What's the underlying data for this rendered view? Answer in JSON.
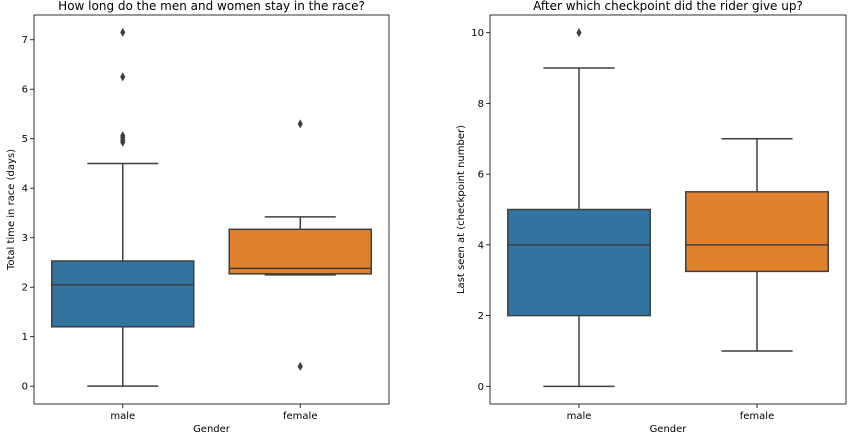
{
  "chart_data": [
    {
      "type": "box",
      "title": "How long do the men and women stay in the race?",
      "xlabel": "Gender",
      "ylabel": "Total time in race (days)",
      "categories": [
        "male",
        "female"
      ],
      "ylim": [
        -0.36,
        7.5
      ],
      "yticks": [
        0,
        1,
        2,
        3,
        4,
        5,
        6,
        7
      ],
      "grid": false,
      "boxes": [
        {
          "category": "male",
          "color": "#3274a1",
          "whisker_low": 0.0,
          "q1": 1.2,
          "median": 2.05,
          "q3": 2.53,
          "whisker_high": 4.5,
          "outliers": [
            4.93,
            4.97,
            5.02,
            5.06,
            6.25,
            7.15
          ]
        },
        {
          "category": "female",
          "color": "#e1812c",
          "whisker_low": 2.25,
          "q1": 2.27,
          "median": 2.38,
          "q3": 3.17,
          "whisker_high": 3.42,
          "outliers": [
            0.4,
            5.3
          ]
        }
      ]
    },
    {
      "type": "box",
      "title": "After which checkpoint did the rider give up?",
      "xlabel": "Gender",
      "ylabel": "Last seen at (checkpoint number)",
      "categories": [
        "male",
        "female"
      ],
      "ylim": [
        -0.5,
        10.5
      ],
      "yticks": [
        0,
        2,
        4,
        6,
        8,
        10
      ],
      "grid": false,
      "boxes": [
        {
          "category": "male",
          "color": "#3274a1",
          "whisker_low": 0,
          "q1": 2,
          "median": 4,
          "q3": 5,
          "whisker_high": 9,
          "outliers": [
            10
          ]
        },
        {
          "category": "female",
          "color": "#e1812c",
          "whisker_low": 1,
          "q1": 3.25,
          "median": 4,
          "q3": 5.5,
          "whisker_high": 7,
          "outliers": []
        }
      ]
    }
  ]
}
